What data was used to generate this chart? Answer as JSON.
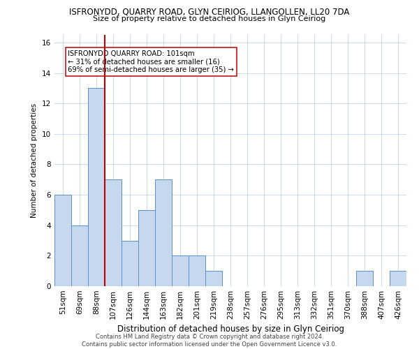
{
  "title": "ISFRONYDD, QUARRY ROAD, GLYN CEIRIOG, LLANGOLLEN, LL20 7DA",
  "subtitle": "Size of property relative to detached houses in Glyn Ceiriog",
  "xlabel": "Distribution of detached houses by size in Glyn Ceiriog",
  "ylabel": "Number of detached properties",
  "footnote": "Contains HM Land Registry data © Crown copyright and database right 2024.\nContains public sector information licensed under the Open Government Licence v3.0.",
  "categories": [
    "51sqm",
    "69sqm",
    "88sqm",
    "107sqm",
    "126sqm",
    "144sqm",
    "163sqm",
    "182sqm",
    "201sqm",
    "219sqm",
    "238sqm",
    "257sqm",
    "276sqm",
    "295sqm",
    "313sqm",
    "332sqm",
    "351sqm",
    "370sqm",
    "388sqm",
    "407sqm",
    "426sqm"
  ],
  "values": [
    6,
    4,
    13,
    7,
    3,
    5,
    7,
    2,
    2,
    1,
    0,
    0,
    0,
    0,
    0,
    0,
    0,
    0,
    1,
    0,
    1
  ],
  "bar_color": "#c5d8ed",
  "bar_edgecolor": "#5b8fc9",
  "vline_x": 2.5,
  "vline_color": "#c00000",
  "annotation_text": "ISFRONYDD QUARRY ROAD: 101sqm\n← 31% of detached houses are smaller (16)\n69% of semi-detached houses are larger (35) →",
  "annotation_box_edgecolor": "#c00000",
  "ylim": [
    0,
    16.5
  ],
  "yticks": [
    0,
    2,
    4,
    6,
    8,
    10,
    12,
    14,
    16
  ],
  "background_color": "#ffffff",
  "grid_color": "#c8d4e8",
  "title_fontsize": 8.5,
  "subtitle_fontsize": 8.0,
  "ylabel_fontsize": 7.5,
  "xlabel_fontsize": 8.5,
  "tick_fontsize": 7.5,
  "footnote_fontsize": 6.0
}
